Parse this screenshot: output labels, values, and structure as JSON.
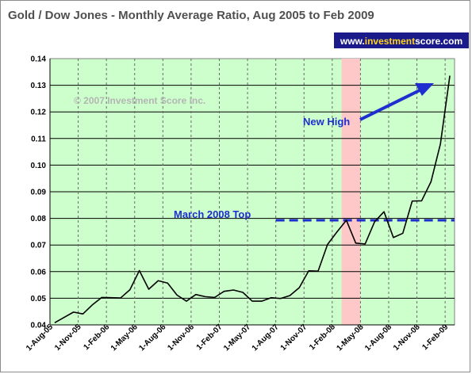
{
  "chart_data": {
    "type": "line",
    "title": "Gold / Dow Jones - Monthly Average Ratio, Aug 2005 to Feb 2009",
    "xlabel": "",
    "ylabel": "",
    "ylim": [
      0.04,
      0.14
    ],
    "y_ticks": [
      "0.04",
      "0.05",
      "0.06",
      "0.07",
      "0.08",
      "0.09",
      "0.10",
      "0.11",
      "0.12",
      "0.13",
      "0.14"
    ],
    "x_tick_labels": [
      "1-Aug-05",
      "1-Nov-05",
      "1-Feb-06",
      "1-May-06",
      "1-Aug-06",
      "1-Nov-06",
      "1-Feb-07",
      "1-May-07",
      "1-Aug-07",
      "1-Nov-07",
      "1-Feb-08",
      "1-May-08",
      "1-Aug-08",
      "1-Nov-08",
      "1-Feb-09"
    ],
    "grid": true,
    "background_color": "#ccffcc",
    "line_color": "#000000",
    "series": [
      {
        "x": [
          "Aug-05",
          "Sep-05",
          "Oct-05",
          "Nov-05",
          "Dec-05",
          "Jan-06",
          "Feb-06",
          "Mar-06",
          "Apr-06",
          "May-06",
          "Jun-06",
          "Jul-06",
          "Aug-06",
          "Sep-06",
          "Oct-06",
          "Nov-06",
          "Dec-06",
          "Jan-07",
          "Feb-07",
          "Mar-07",
          "Apr-07",
          "May-07",
          "Jun-07",
          "Jul-07",
          "Aug-07",
          "Sep-07",
          "Oct-07",
          "Nov-07",
          "Dec-07",
          "Jan-08",
          "Feb-08",
          "Mar-08",
          "Apr-08",
          "May-08",
          "Jun-08",
          "Jul-08",
          "Aug-08",
          "Sep-08",
          "Oct-08",
          "Nov-08",
          "Dec-08",
          "Jan-09",
          "Feb-09"
        ],
        "values": [
          0.0408,
          0.0428,
          0.0448,
          0.0441,
          0.0475,
          0.0503,
          0.0502,
          0.0501,
          0.0532,
          0.0604,
          0.0534,
          0.0566,
          0.0557,
          0.0512,
          0.0489,
          0.0514,
          0.0506,
          0.0503,
          0.0526,
          0.0531,
          0.0522,
          0.0489,
          0.0489,
          0.0502,
          0.0499,
          0.051,
          0.054,
          0.0603,
          0.0602,
          0.0702,
          0.0749,
          0.0793,
          0.0707,
          0.0704,
          0.0787,
          0.0825,
          0.0728,
          0.0744,
          0.0865,
          0.0866,
          0.0938,
          0.108,
          0.1336
        ]
      }
    ],
    "highlight_band": {
      "from": "Mar-08",
      "to": "Apr-08",
      "color": "#ffc8c8"
    },
    "reference_line": {
      "value": 0.0793,
      "from": "Aug-07",
      "to": "Feb-09",
      "label": "March 2008 Top",
      "color": "#1f2fcf"
    },
    "annotations": {
      "new_high": "New High",
      "watermark": "© 2007 Investment Score Inc.",
      "site_prefix": "www.",
      "site_brand": "investment",
      "site_suffix": "score.com"
    }
  }
}
